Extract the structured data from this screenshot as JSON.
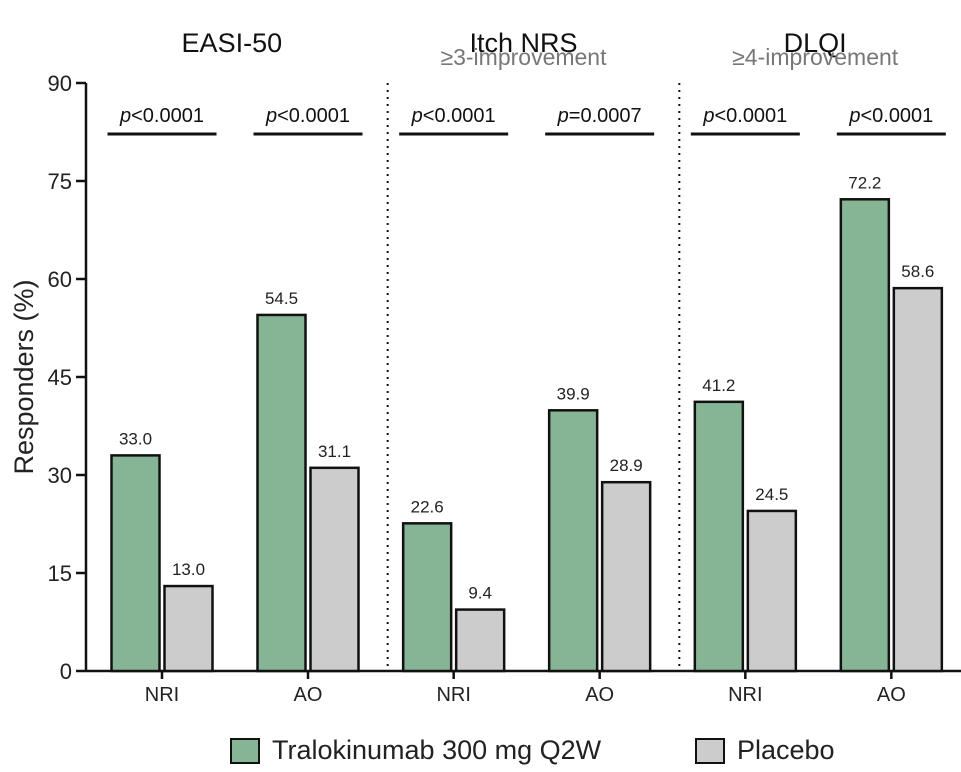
{
  "chart_data": {
    "type": "bar",
    "ylabel": "Responders (%)",
    "ylim": [
      0,
      90
    ],
    "yticks": [
      0,
      15,
      30,
      45,
      60,
      75,
      90
    ],
    "categories": [
      "NRI",
      "AO"
    ],
    "series": [
      {
        "name": "Tralokinumab 300 mg Q2W",
        "color": "#86b596"
      },
      {
        "name": "Placebo",
        "color": "#cccccc"
      }
    ],
    "panels": [
      {
        "title": "EASI-50",
        "subtitle": "",
        "groups": [
          {
            "category": "NRI",
            "values": [
              33.0,
              13.0
            ],
            "labels": [
              "33.0",
              "13.0"
            ],
            "p_prefix": "p",
            "p_text": "<0.0001"
          },
          {
            "category": "AO",
            "values": [
              54.5,
              31.1
            ],
            "labels": [
              "54.5",
              "31.1"
            ],
            "p_prefix": "p",
            "p_text": "<0.0001"
          }
        ]
      },
      {
        "title": "Itch NRS",
        "subtitle": "≥3-improvement",
        "groups": [
          {
            "category": "NRI",
            "values": [
              22.6,
              9.4
            ],
            "labels": [
              "22.6",
              "9.4"
            ],
            "p_prefix": "p",
            "p_text": "<0.0001"
          },
          {
            "category": "AO",
            "values": [
              39.9,
              28.9
            ],
            "labels": [
              "39.9",
              "28.9"
            ],
            "p_prefix": "p",
            "p_text": "=0.0007"
          }
        ]
      },
      {
        "title": "DLQI",
        "subtitle": "≥4-improvement",
        "groups": [
          {
            "category": "NRI",
            "values": [
              41.2,
              24.5
            ],
            "labels": [
              "41.2",
              "24.5"
            ],
            "p_prefix": "p",
            "p_text": "<0.0001"
          },
          {
            "category": "AO",
            "values": [
              72.2,
              58.6
            ],
            "labels": [
              "72.2",
              "58.6"
            ],
            "p_prefix": "p",
            "p_text": "<0.0001"
          }
        ]
      }
    ],
    "grid": false,
    "legend_position": "bottom"
  }
}
